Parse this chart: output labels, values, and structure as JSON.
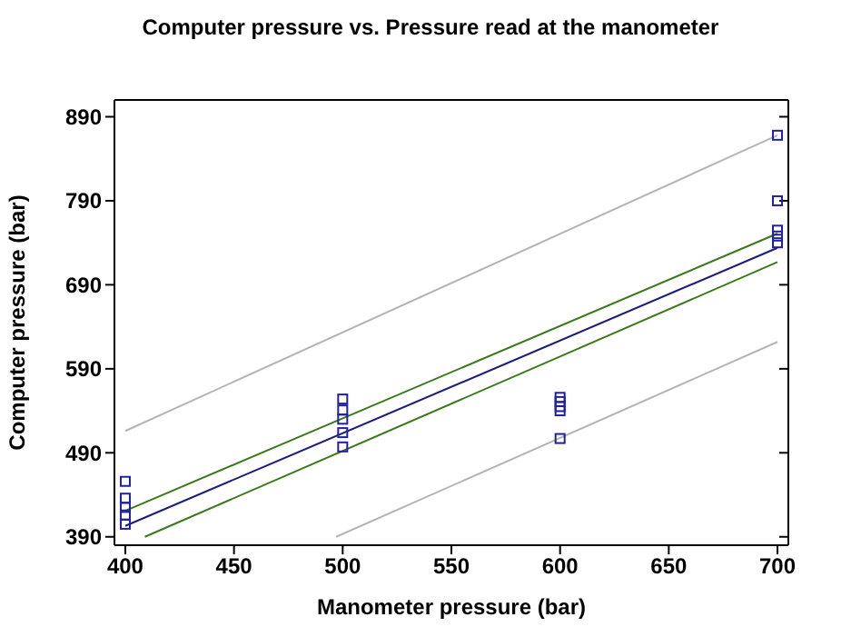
{
  "chart_data": {
    "type": "scatter",
    "title": "Computer  pressure vs. Pressure read at the manometer",
    "xlabel": "Manometer pressure (bar)",
    "ylabel": "Computer pressure (bar)",
    "xlim": [
      395,
      705
    ],
    "xticks": [
      400,
      450,
      500,
      550,
      600,
      650,
      700
    ],
    "ylim": [
      380,
      910
    ],
    "yticks": [
      390,
      490,
      590,
      690,
      790,
      890
    ],
    "series": [
      {
        "marker": "square",
        "color": "#2020a0",
        "x": [
          400,
          400,
          400,
          400,
          400,
          500,
          500,
          500,
          500,
          500,
          600,
          600,
          600,
          600,
          600,
          700,
          700,
          700,
          700,
          700
        ],
        "values": [
          456,
          436,
          425,
          416,
          405,
          554,
          541,
          530,
          514,
          497,
          556,
          551,
          545,
          540,
          507,
          868,
          790,
          755,
          748,
          740
        ]
      },
      {
        "type": "line",
        "marker": "none",
        "color": "#1c1c80",
        "x": [
          400,
          700
        ],
        "values": [
          403,
          734
        ]
      },
      {
        "type": "line",
        "marker": "none",
        "color": "#3a7a1a",
        "x": [
          400,
          700
        ],
        "values": [
          421,
          751
        ]
      },
      {
        "type": "line",
        "marker": "none",
        "color": "#3a7a1a",
        "x": [
          409,
          700
        ],
        "values": [
          390,
          717
        ]
      },
      {
        "type": "line",
        "marker": "none",
        "color": "#b4b4b4",
        "x": [
          400,
          700
        ],
        "values": [
          516,
          868
        ]
      },
      {
        "type": "line",
        "marker": "none",
        "color": "#b4b4b4",
        "x": [
          497,
          700
        ],
        "values": [
          390,
          622
        ]
      }
    ]
  }
}
